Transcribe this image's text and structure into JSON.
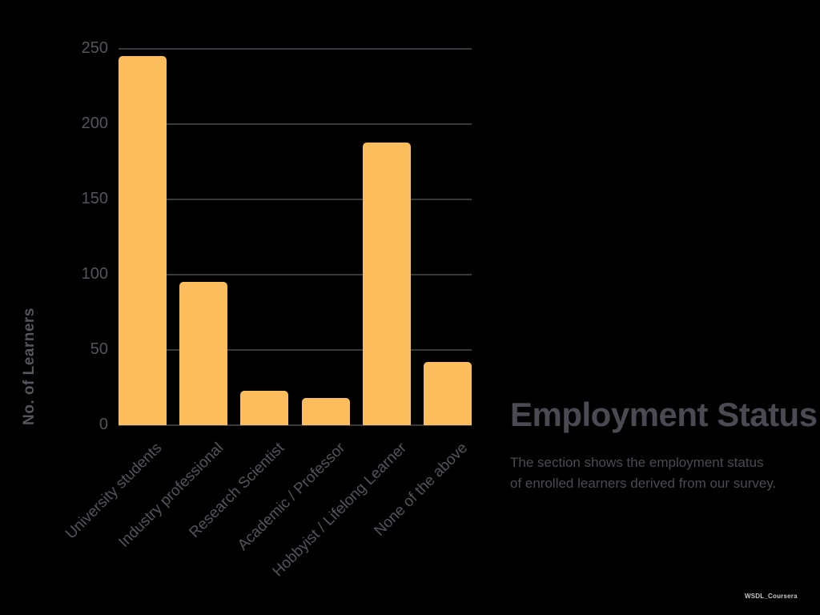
{
  "chart_data": {
    "type": "bar",
    "categories": [
      "University students",
      "Industry professional",
      "Research Scientist",
      "Academic / Professor",
      "Hobbyist / Lifelong Learner",
      "None of the above"
    ],
    "values": [
      245,
      95,
      23,
      18,
      188,
      42
    ],
    "title": "",
    "xlabel": "",
    "ylabel": "No. of Learners",
    "ylim": [
      0,
      250
    ],
    "yticks": [
      0,
      50,
      100,
      150,
      200,
      250
    ],
    "grid": true,
    "legend": false,
    "bar_color": "#fcbd5c"
  },
  "section": {
    "title": "Employment Status",
    "description_line1": "The section shows the employment status",
    "description_line2": "of enrolled learners derived from our survey."
  },
  "watermark": "WSDL_Coursera",
  "colors": {
    "background": "#000000",
    "bar": "#fcbd5c",
    "gridline": "#39383f",
    "tick_text": "#55535b",
    "axis_title_text": "#56545c",
    "heading_text": "#4d4952",
    "watermark_text": "#c8c8c8"
  }
}
